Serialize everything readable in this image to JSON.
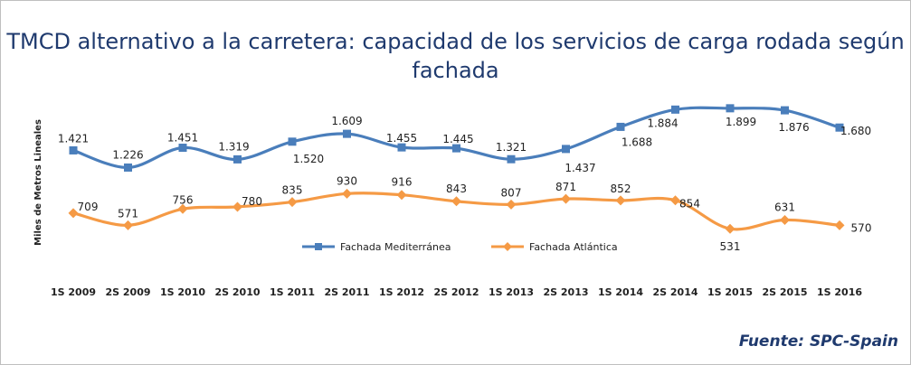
{
  "chart_data": {
    "type": "line",
    "title": "TMCD alternativo a la carretera: capacidad de los servicios de carga rodada según fachada",
    "ylabel": "Miles de Metros Lineales",
    "xlabel": "",
    "ylim": [
      400,
      2000
    ],
    "grid": false,
    "legend_position": "bottom-center",
    "categories": [
      "1S 2009",
      "2S 2009",
      "1S 2010",
      "2S 2010",
      "1S 2011",
      "2S 2011",
      "1S 2012",
      "2S 2012",
      "1S 2013",
      "2S 2013",
      "1S 2014",
      "2S 2014",
      "1S 2015",
      "2S 2015",
      "1S 2016"
    ],
    "series": [
      {
        "name": "Fachada Mediterránea",
        "color": "#4a7ebb",
        "marker": "square",
        "values": [
          1421,
          1226,
          1451,
          1319,
          1520,
          1609,
          1455,
          1445,
          1321,
          1437,
          1688,
          1884,
          1899,
          1876,
          1680
        ],
        "labels": [
          "1.421",
          "1.226",
          "1.451",
          "1.319",
          "1.520",
          "1.609",
          "1.455",
          "1.445",
          "1.321",
          "1.437",
          "1.688",
          "1.884",
          "1.899",
          "1.876",
          "1.680"
        ]
      },
      {
        "name": "Fachada Atlántica",
        "color": "#f59a45",
        "marker": "diamond",
        "values": [
          709,
          571,
          756,
          780,
          835,
          930,
          916,
          843,
          807,
          871,
          852,
          854,
          531,
          631,
          570
        ],
        "labels": [
          "709",
          "571",
          "756",
          "780",
          "835",
          "930",
          "916",
          "843",
          "807",
          "871",
          "852",
          "854",
          "531",
          "631",
          "570"
        ]
      }
    ]
  },
  "source": "Fuente: SPC-Spain"
}
